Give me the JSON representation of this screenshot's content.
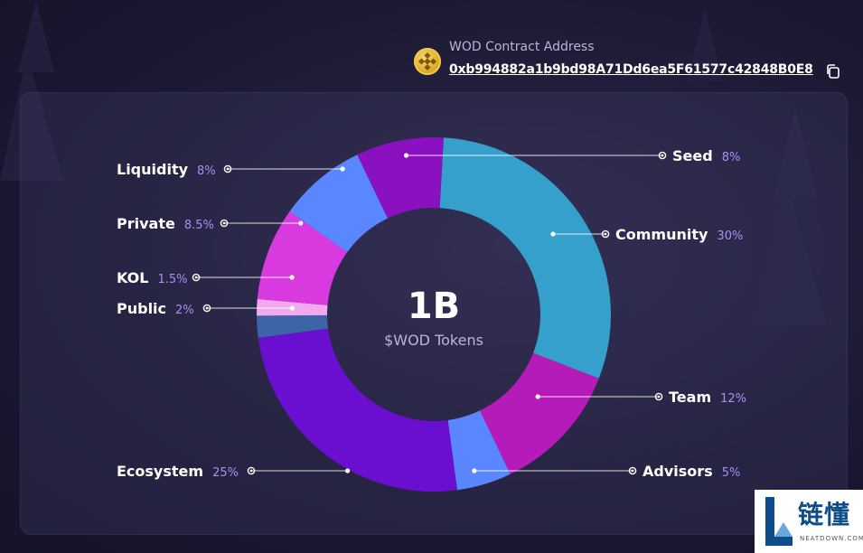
{
  "contract": {
    "label": "WOD Contract Address",
    "address": "0xb994882a1b9bd98A71Dd6ea5F61577c42848B0E8"
  },
  "chart_data": {
    "type": "pie",
    "center_value": "1B",
    "center_label": "$WOD Tokens",
    "slices": [
      {
        "name": "Community",
        "value": 30,
        "label": "30%",
        "color": "#35a0cb",
        "side": "right"
      },
      {
        "name": "Team",
        "value": 12,
        "label": "12%",
        "color": "#b41bb8",
        "side": "right"
      },
      {
        "name": "Advisors",
        "value": 5,
        "label": "5%",
        "color": "#5a87ff",
        "side": "right"
      },
      {
        "name": "Ecosystem",
        "value": 25,
        "label": "25%",
        "color": "#6a0fd0",
        "side": "left"
      },
      {
        "name": "Public",
        "value": 2,
        "label": "2%",
        "color": "#3c64a6",
        "side": "left"
      },
      {
        "name": "KOL",
        "value": 1.5,
        "label": "1.5%",
        "color": "#f2a9ee",
        "side": "left"
      },
      {
        "name": "Private",
        "value": 8.5,
        "label": "8.5%",
        "color": "#d83ae0",
        "side": "left"
      },
      {
        "name": "Liquidity",
        "value": 8,
        "label": "8%",
        "color": "#5a87ff",
        "side": "left"
      },
      {
        "name": "Seed",
        "value": 8,
        "label": "8%",
        "color": "#8a10c0",
        "side": "right"
      }
    ]
  },
  "watermark": {
    "text": "链懂",
    "sub": "NEATDOWN.COM"
  }
}
